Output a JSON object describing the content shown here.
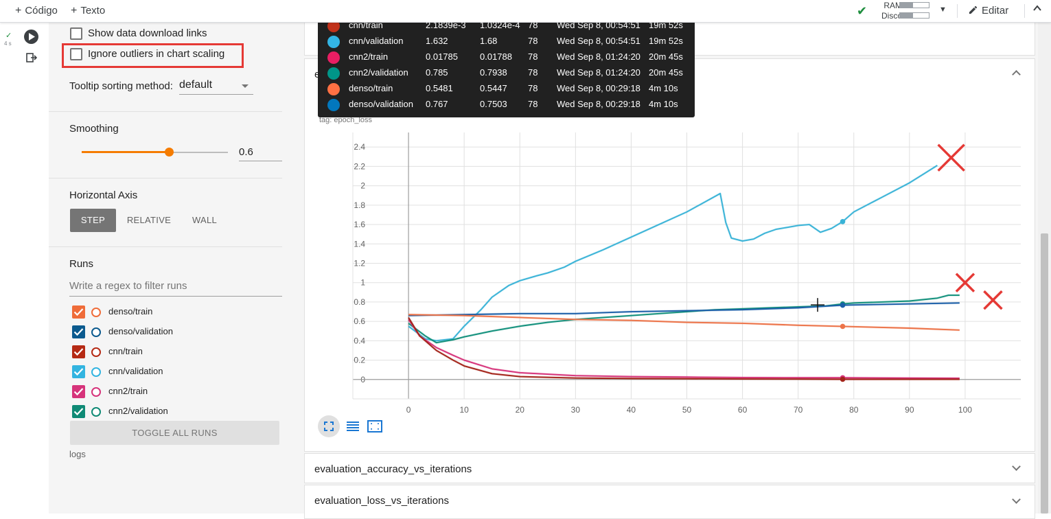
{
  "topbar": {
    "code_label": "Código",
    "text_label": "Texto",
    "ram_label": "RAM",
    "disk_label": "Disco",
    "ram_fraction": 0.45,
    "disk_fraction": 0.45,
    "edit_label": "Editar"
  },
  "cell": {
    "exec_status": "✓",
    "exec_time": "4 s"
  },
  "sidebar": {
    "show_download_label": "Show data download links",
    "ignore_outliers_label": "Ignore outliers in chart scaling",
    "tooltip_sort_label": "Tooltip sorting method:",
    "tooltip_sort_value": "default",
    "smoothing_label": "Smoothing",
    "smoothing_value": "0.6",
    "smoothing_fraction": 0.6,
    "horizontal_axis_label": "Horizontal Axis",
    "axis_options": [
      "STEP",
      "RELATIVE",
      "WALL"
    ],
    "axis_selected": "STEP",
    "runs_label": "Runs",
    "filter_placeholder": "Write a regex to filter runs",
    "runs": [
      {
        "name": "denso/train",
        "color": "#ef6c39",
        "checked": true
      },
      {
        "name": "denso/validation",
        "color": "#0b5a8e",
        "checked": true
      },
      {
        "name": "cnn/train",
        "color": "#b52a14",
        "checked": true
      },
      {
        "name": "cnn/validation",
        "color": "#32b4e0",
        "checked": true
      },
      {
        "name": "cnn2/train",
        "color": "#d6337a",
        "checked": true
      },
      {
        "name": "cnn2/validation",
        "color": "#0f8a75",
        "checked": true
      }
    ],
    "toggle_all_label": "TOGGLE ALL RUNS",
    "logs_label": "logs"
  },
  "tooltip": {
    "rows": [
      {
        "color": "#c1311a",
        "name": "cnn/train",
        "smoothed": "2.1839e-3",
        "value": "1.0324e-4",
        "step": "78",
        "time": "Wed Sep 8, 00:54:51",
        "relative": "19m 52s"
      },
      {
        "color": "#33b5e5",
        "name": "cnn/validation",
        "smoothed": "1.632",
        "value": "1.68",
        "step": "78",
        "time": "Wed Sep 8, 00:54:51",
        "relative": "19m 52s"
      },
      {
        "color": "#e91e63",
        "name": "cnn2/train",
        "smoothed": "0.01785",
        "value": "0.01788",
        "step": "78",
        "time": "Wed Sep 8, 01:24:20",
        "relative": "20m 45s"
      },
      {
        "color": "#009688",
        "name": "cnn2/validation",
        "smoothed": "0.785",
        "value": "0.7938",
        "step": "78",
        "time": "Wed Sep 8, 01:24:20",
        "relative": "20m 45s"
      },
      {
        "color": "#ff7043",
        "name": "denso/train",
        "smoothed": "0.5481",
        "value": "0.5447",
        "step": "78",
        "time": "Wed Sep 8, 00:29:18",
        "relative": "4m 10s"
      },
      {
        "color": "#0277bd",
        "name": "denso/validation",
        "smoothed": "0.767",
        "value": "0.7503",
        "step": "78",
        "time": "Wed Sep 8, 00:29:18",
        "relative": "4m 10s"
      }
    ]
  },
  "main": {
    "epoch_card_title": "epoch_loss",
    "chart_title": "epoch_loss",
    "chart_tag": "tag: epoch_loss",
    "eval_accuracy_title": "evaluation_accuracy_vs_iterations",
    "eval_loss_title": "evaluation_loss_vs_iterations"
  },
  "chart_data": {
    "type": "line",
    "title": "epoch_loss",
    "xlabel": "",
    "ylabel": "",
    "xlim": [
      -10,
      110
    ],
    "ylim": [
      -0.2,
      2.55
    ],
    "xticks": [
      0,
      10,
      20,
      30,
      40,
      50,
      60,
      70,
      80,
      90,
      100
    ],
    "yticks": [
      0,
      0.2,
      0.4,
      0.6,
      0.8,
      1,
      1.2,
      1.4,
      1.6,
      1.8,
      2,
      2.2,
      2.4
    ],
    "grid": true,
    "hover_step": 78,
    "series": [
      {
        "name": "cnn/validation",
        "color": "#39b3d7",
        "x": [
          0,
          3,
          5,
          8,
          10,
          13,
          15,
          18,
          20,
          23,
          25,
          28,
          30,
          35,
          40,
          45,
          50,
          56,
          57,
          58,
          60,
          62,
          64,
          66,
          68,
          70,
          72,
          73,
          74,
          76,
          78,
          80,
          85,
          90,
          95
        ],
        "y": [
          0.55,
          0.42,
          0.4,
          0.42,
          0.55,
          0.72,
          0.85,
          0.97,
          1.02,
          1.07,
          1.1,
          1.16,
          1.22,
          1.34,
          1.47,
          1.6,
          1.73,
          1.92,
          1.62,
          1.46,
          1.43,
          1.45,
          1.51,
          1.55,
          1.57,
          1.59,
          1.6,
          1.56,
          1.52,
          1.56,
          1.63,
          1.73,
          1.88,
          2.03,
          2.21
        ]
      },
      {
        "name": "cnn2/validation",
        "color": "#12907c",
        "x": [
          0,
          3,
          5,
          8,
          10,
          15,
          20,
          25,
          30,
          35,
          40,
          45,
          50,
          55,
          60,
          65,
          70,
          75,
          78,
          80,
          85,
          90,
          95,
          97,
          99
        ],
        "y": [
          0.58,
          0.45,
          0.38,
          0.41,
          0.44,
          0.5,
          0.55,
          0.59,
          0.62,
          0.64,
          0.66,
          0.68,
          0.7,
          0.72,
          0.73,
          0.74,
          0.75,
          0.76,
          0.78,
          0.79,
          0.8,
          0.81,
          0.84,
          0.87,
          0.87
        ]
      },
      {
        "name": "denso/validation",
        "color": "#1b5fa8",
        "x": [
          0,
          10,
          20,
          30,
          40,
          50,
          60,
          70,
          78,
          80,
          90,
          99
        ],
        "y": [
          0.66,
          0.67,
          0.68,
          0.68,
          0.7,
          0.71,
          0.72,
          0.74,
          0.767,
          0.77,
          0.78,
          0.79
        ]
      },
      {
        "name": "denso/train",
        "color": "#ec7348",
        "x": [
          0,
          10,
          20,
          30,
          40,
          50,
          60,
          70,
          78,
          90,
          99
        ],
        "y": [
          0.67,
          0.66,
          0.64,
          0.62,
          0.61,
          0.59,
          0.58,
          0.56,
          0.548,
          0.53,
          0.51
        ]
      },
      {
        "name": "cnn2/train",
        "color": "#d6337a",
        "x": [
          0,
          2,
          5,
          8,
          10,
          15,
          20,
          30,
          40,
          50,
          60,
          70,
          78,
          90,
          99
        ],
        "y": [
          0.62,
          0.45,
          0.33,
          0.25,
          0.2,
          0.11,
          0.07,
          0.04,
          0.03,
          0.025,
          0.02,
          0.018,
          0.018,
          0.015,
          0.013
        ]
      },
      {
        "name": "cnn/train",
        "color": "#a3241a",
        "x": [
          0,
          2,
          5,
          8,
          10,
          15,
          20,
          30,
          40,
          50,
          60,
          70,
          78,
          90,
          99
        ],
        "y": [
          0.64,
          0.45,
          0.3,
          0.2,
          0.14,
          0.06,
          0.03,
          0.015,
          0.01,
          0.008,
          0.005,
          0.004,
          0.002,
          0.002,
          0.002
        ]
      }
    ],
    "annotations": [
      {
        "x": 97.5,
        "y": 2.29,
        "color": "#e53935",
        "mark": "cross"
      },
      {
        "x": 100,
        "y": 1.0,
        "color": "#e53935",
        "mark": "cross"
      },
      {
        "x": 105,
        "y": 0.82,
        "color": "#e53935",
        "mark": "cross"
      }
    ]
  }
}
